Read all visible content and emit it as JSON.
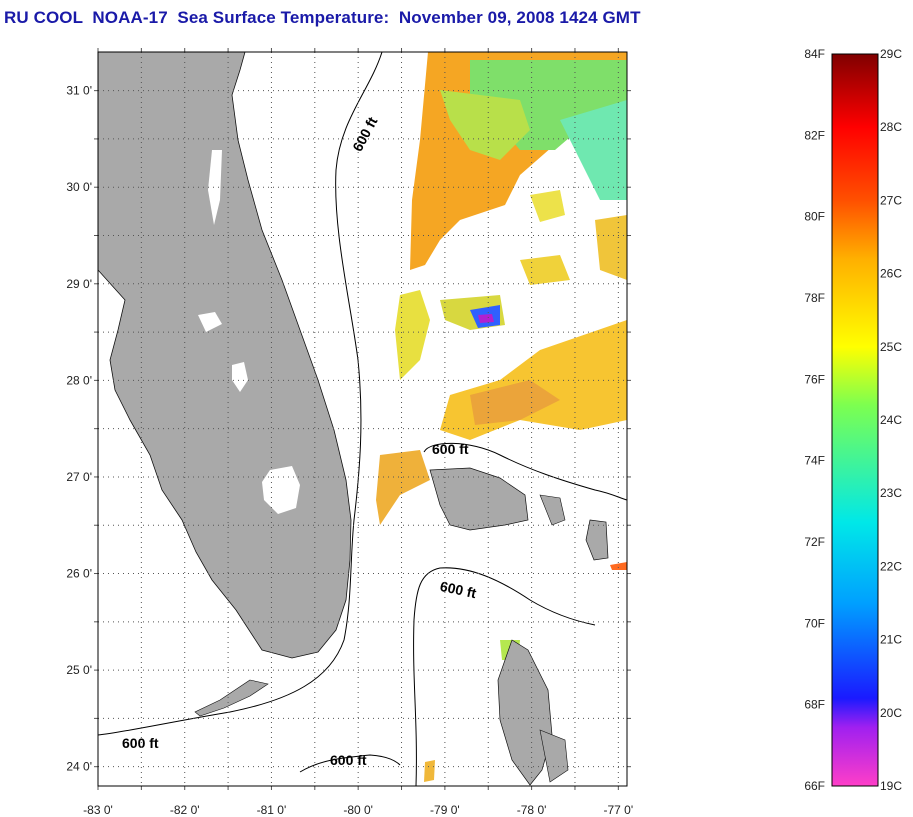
{
  "title": "RU COOL  NOAA-17  Sea Surface Temperature:  November 09, 2008 1424 GMT",
  "map": {
    "lat_labels": [
      "31 0'",
      "30 0'",
      "29 0'",
      "28 0'",
      "27 0'",
      "26 0'",
      "25 0'",
      "24 0'"
    ],
    "lon_labels": [
      "-83 0'",
      "-82 0'",
      "-81 0'",
      "-80 0'",
      "-79 0'",
      "-78 0'",
      "-77 0'"
    ],
    "lon_range": [
      -83,
      -76.9
    ],
    "lat_range": [
      23.8,
      31.4
    ],
    "land_color": "#a9a9a9",
    "contour_label": "600 ft",
    "contour_labels": [
      "600 ft",
      "600 ft",
      "600 ft",
      "600 ft",
      "600 ft"
    ]
  },
  "colorbar": {
    "f_labels": [
      "84F",
      "82F",
      "80F",
      "78F",
      "76F",
      "74F",
      "72F",
      "70F",
      "68F",
      "66F"
    ],
    "c_labels": [
      "29C",
      "28C",
      "27C",
      "26C",
      "25C",
      "24C",
      "23C",
      "22C",
      "21C",
      "20C",
      "19C"
    ],
    "stops": [
      "#ff3ec8",
      "#a020f0",
      "#1a1aff",
      "#00a0ff",
      "#00e8e8",
      "#7cff50",
      "#ffff00",
      "#ffb000",
      "#ff5000",
      "#ff0000",
      "#800000"
    ]
  }
}
